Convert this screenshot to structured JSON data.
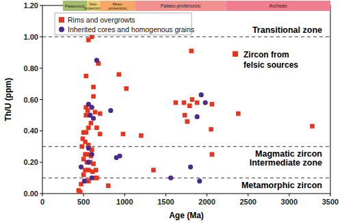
{
  "chart_data": {
    "type": "scatter",
    "xlabel": "Age (Ma)",
    "ylabel": "Th/U (ppm)",
    "xlim": [
      0,
      3500
    ],
    "ylim": [
      0,
      1.2
    ],
    "xticks": [
      0,
      500,
      1000,
      1500,
      2000,
      2500,
      3000,
      3500
    ],
    "yticks": [
      {
        "value": 0,
        "label": "0.00"
      },
      {
        "value": 0.2,
        "label": "0.20"
      },
      {
        "value": 0.4,
        "label": "0.40"
      },
      {
        "value": 0.6,
        "label": "0.60"
      },
      {
        "value": 0.8,
        "label": "0.80"
      },
      {
        "value": 1.0,
        "label": "1.00"
      },
      {
        "value": 1.2,
        "label": "1.20"
      }
    ],
    "grid": false,
    "legend": "upper left",
    "series": [
      {
        "name": "Rims and overgrowts",
        "color": "#e8341c",
        "marker": "square",
        "x": [
          560,
          600,
          680,
          620,
          530,
          620,
          530,
          550,
          640,
          700,
          530,
          590,
          560,
          660,
          530,
          500,
          490,
          520,
          560,
          480,
          600,
          550,
          520,
          590,
          500,
          580,
          540,
          620,
          520,
          560,
          500,
          610,
          640,
          660,
          520,
          560,
          470,
          440,
          460,
          800,
          930,
          1020,
          980,
          1200,
          1350,
          1620,
          1720,
          1730,
          1760,
          1790,
          1810,
          1820,
          1880,
          2060,
          2050,
          2060,
          2380,
          3280,
          700,
          650
        ],
        "values": [
          0.98,
          1.0,
          0.83,
          0.68,
          0.75,
          0.62,
          0.55,
          0.53,
          0.52,
          0.51,
          0.5,
          0.45,
          0.42,
          0.42,
          0.39,
          0.39,
          0.35,
          0.33,
          0.31,
          0.3,
          0.28,
          0.25,
          0.25,
          0.24,
          0.22,
          0.2,
          0.2,
          0.19,
          0.15,
          0.15,
          0.12,
          0.14,
          0.1,
          0.1,
          0.08,
          0.08,
          0.06,
          0.02,
          0.01,
          0.05,
          0.76,
          0.67,
          0.38,
          0.37,
          0.15,
          0.58,
          0.58,
          0.5,
          0.46,
          0.56,
          0.91,
          0.6,
          0.58,
          0.57,
          0.41,
          0.25,
          0.51,
          0.43,
          0.38,
          0.15
        ]
      },
      {
        "name": "Inherited cores and homogenous grains",
        "color": "#4a2a8a",
        "marker": "circle",
        "x": [
          660,
          560,
          600,
          620,
          830,
          560,
          470,
          560,
          600,
          900,
          940,
          510,
          600,
          1560,
          1800,
          1880,
          1910,
          1930,
          1980,
          580
        ],
        "values": [
          0.85,
          0.57,
          0.55,
          0.48,
          0.53,
          0.29,
          0.17,
          0.2,
          0.25,
          0.23,
          0.24,
          0.08,
          0.1,
          0.1,
          0.17,
          0.49,
          0.08,
          0.63,
          0.58,
          0.5
        ]
      }
    ],
    "reference_lines": [
      1.0,
      0.3,
      0.1
    ],
    "annotations": [
      "Transitional zone",
      "Zircon from felsic sources",
      "Magmatic zircon",
      "Intermediate zone",
      "Metamorphic zircon"
    ],
    "periods": [
      {
        "name": "Palaeozoic",
        "start": 250,
        "end": 541,
        "color": "#a3bb6c"
      },
      {
        "name": "Neo-proterozoic",
        "start": 541,
        "end": 700,
        "color": "#eecb6e"
      },
      {
        "name": "Meso-proterozoic",
        "start": 700,
        "end": 1130,
        "color": "#f4aa66"
      },
      {
        "name": "Palaeo-proterozoic",
        "start": 1130,
        "end": 2230,
        "color": "#f29090"
      },
      {
        "name": "Archean",
        "start": 2230,
        "end": 3500,
        "color": "#ee7d90"
      }
    ]
  }
}
